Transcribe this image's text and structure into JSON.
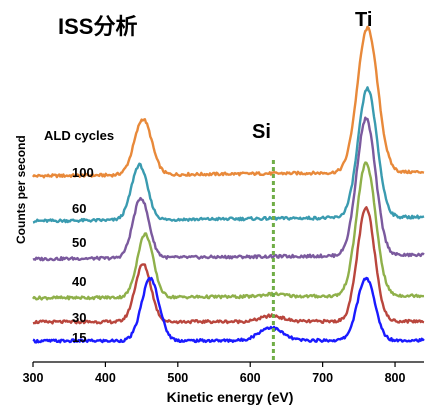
{
  "chart_data": {
    "type": "line",
    "title": "ISS分析",
    "xlabel": "Kinetic energy (eV)",
    "ylabel": "Counts per second",
    "xlim": [
      300,
      840
    ],
    "xticks": [
      300,
      400,
      500,
      600,
      700,
      800
    ],
    "grid": false,
    "legend_title": "ALD cycles",
    "annotations": [
      {
        "text": "Si",
        "x": 632
      },
      {
        "text": "Ti",
        "x": 760
      }
    ],
    "si_marker_x": 632,
    "series": [
      {
        "name": "100",
        "color": "#e8893a",
        "baseline": 0,
        "slope": 0.5,
        "peaks": [
          {
            "x": 452,
            "h": 6.8,
            "w": 12
          },
          {
            "x": 762,
            "h": 17.6,
            "w": 14
          }
        ]
      },
      {
        "name": "60",
        "color": "#3a9bb0",
        "baseline": 0,
        "slope": 0.5,
        "peaks": [
          {
            "x": 447,
            "h": 6.7,
            "w": 11
          },
          {
            "x": 762,
            "h": 15.7,
            "w": 13
          }
        ]
      },
      {
        "name": "50",
        "color": "#7b5a9e",
        "baseline": 0,
        "slope": 0.5,
        "peaks": [
          {
            "x": 449,
            "h": 7.3,
            "w": 11
          },
          {
            "x": 760,
            "h": 16.7,
            "w": 13
          }
        ]
      },
      {
        "name": "40",
        "color": "#8fb04a",
        "baseline": 0,
        "slope": 0.3,
        "peaks": [
          {
            "x": 455,
            "h": 7.7,
            "w": 11
          },
          {
            "x": 632,
            "h": 0.3,
            "w": 15
          },
          {
            "x": 760,
            "h": 16.2,
            "w": 13
          }
        ]
      },
      {
        "name": "30",
        "color": "#b9463d",
        "baseline": 0,
        "slope": 0.1,
        "peaks": [
          {
            "x": 452,
            "h": 7.0,
            "w": 11
          },
          {
            "x": 630,
            "h": 0.7,
            "w": 15
          },
          {
            "x": 760,
            "h": 13.8,
            "w": 12
          }
        ]
      },
      {
        "name": "15",
        "color": "#1a1aff",
        "baseline": 0,
        "slope": 0.1,
        "peaks": [
          {
            "x": 462,
            "h": 7.6,
            "w": 12
          },
          {
            "x": 628,
            "h": 1.6,
            "w": 16
          },
          {
            "x": 760,
            "h": 7.6,
            "w": 12
          }
        ]
      }
    ]
  }
}
